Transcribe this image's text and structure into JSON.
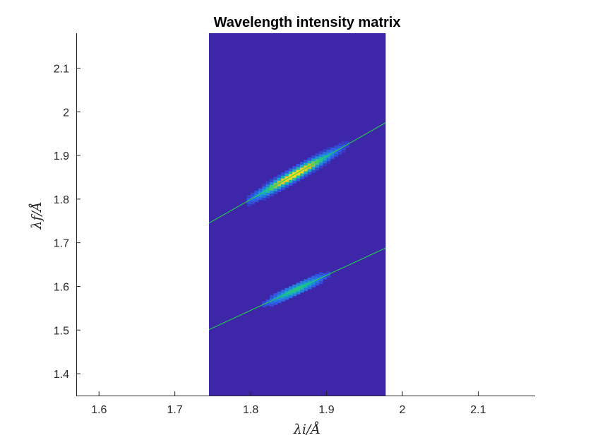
{
  "chart_data": {
    "type": "heatmap",
    "title": "Wavelength intensity matrix",
    "xlabel": "λi/Å",
    "ylabel": "λf/Å",
    "xlim": [
      1.57,
      2.175
    ],
    "ylim": [
      1.35,
      2.18
    ],
    "x_ticks": [
      1.6,
      1.7,
      1.8,
      1.9,
      2.0,
      2.1
    ],
    "x_tick_labels": [
      "1.6",
      "1.7",
      "1.8",
      "1.9",
      "2",
      "2.1"
    ],
    "y_ticks": [
      1.4,
      1.5,
      1.6,
      1.7,
      1.8,
      1.9,
      2.0,
      2.1
    ],
    "y_tick_labels": [
      "1.4",
      "1.5",
      "1.6",
      "1.7",
      "1.8",
      "1.9",
      "2",
      "2.1"
    ],
    "matrix_extent": {
      "x": [
        1.745,
        1.978
      ],
      "y": [
        1.35,
        2.18
      ]
    },
    "background_value": 0,
    "colormap": "parula",
    "grid": false,
    "lines": [
      {
        "color": "#22dd44",
        "points": [
          [
            1.745,
            1.745
          ],
          [
            1.978,
            1.975
          ]
        ]
      },
      {
        "color": "#22dd44",
        "points": [
          [
            1.745,
            1.501
          ],
          [
            1.978,
            1.688
          ]
        ]
      }
    ],
    "blobs": [
      {
        "x_range": [
          1.795,
          1.925
        ],
        "line": 0,
        "peak": 1.0,
        "peak_x": 1.858,
        "width": 0.065
      },
      {
        "x_range": [
          1.81,
          1.91
        ],
        "line": 1,
        "peak": 0.28,
        "peak_x": 1.86,
        "width": 0.05
      }
    ]
  }
}
